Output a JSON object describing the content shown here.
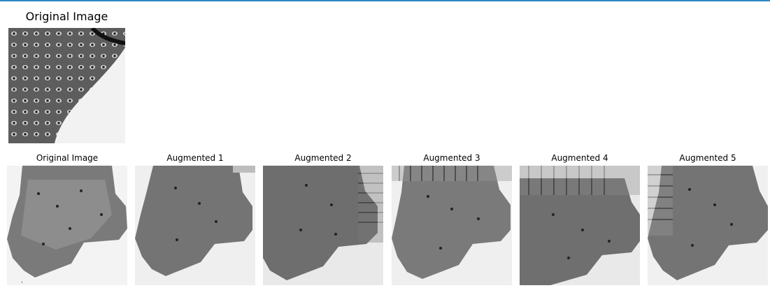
{
  "top_section": {
    "title": "Original Image"
  },
  "grid": {
    "titles": [
      "Original Image",
      "Augmented 1",
      "Augmented 2",
      "Augmented 3",
      "Augmented 4",
      "Augmented 5"
    ]
  },
  "stray_mark": "'"
}
